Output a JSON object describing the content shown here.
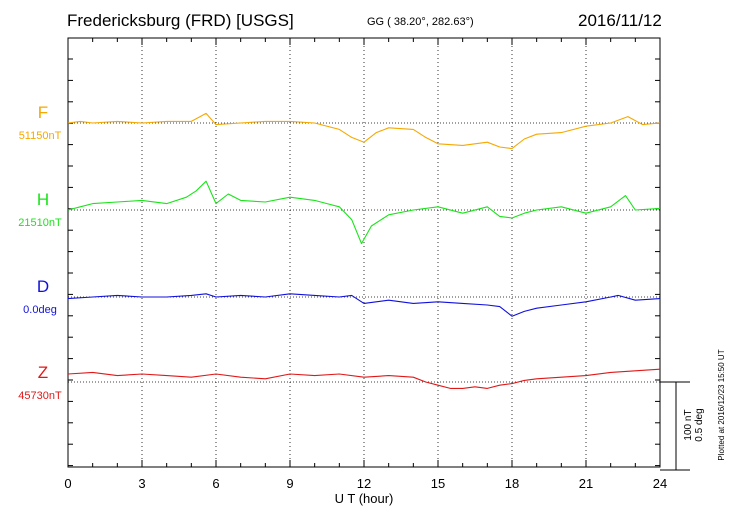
{
  "header": {
    "station": "Fredericksburg (FRD)  [USGS]",
    "coords": "GG ( 38.20°, 282.63°)",
    "date": "2016/11/12"
  },
  "footer": {
    "plotted": "Plotted at 2016/12/23 15:50 UT"
  },
  "colors": {
    "F": "#f5a800",
    "H": "#18e418",
    "D": "#1010dd",
    "Z": "#e01818"
  },
  "chart_data": {
    "type": "line",
    "xlabel": "U T (hour)",
    "xlim": [
      0,
      24
    ],
    "xticks": [
      "0",
      "3",
      "6",
      "9",
      "12",
      "15",
      "18",
      "21",
      "24"
    ],
    "scale_bar": {
      "line1": "100 nT",
      "line2": "0.5 deg"
    },
    "grid": true,
    "series": [
      {
        "name": "F",
        "baseline_label": "51150nT",
        "baseline_value": 51150,
        "unit": "nT",
        "x": [
          0,
          0.5,
          1,
          2,
          3,
          4,
          5,
          5.6,
          6,
          7,
          8,
          9,
          10,
          11,
          11.5,
          12,
          12.5,
          13,
          14,
          14.5,
          15,
          16,
          17,
          17.5,
          18,
          18.5,
          19,
          20,
          21,
          22,
          22.7,
          23.3,
          24
        ],
        "y": [
          51150,
          51151,
          51150,
          51151,
          51150,
          51151,
          51151,
          51156,
          51149,
          51150,
          51151,
          51151,
          51150,
          51146,
          51141,
          51138,
          51144,
          51147,
          51146,
          51141,
          51137,
          51136,
          51138,
          51135,
          51134,
          51140,
          51143,
          51144,
          51148,
          51150,
          51154,
          51149,
          51150
        ]
      },
      {
        "name": "H",
        "baseline_label": "21510nT",
        "baseline_value": 21510,
        "unit": "nT",
        "x": [
          0,
          0.5,
          1,
          2,
          3,
          4,
          4.8,
          5.2,
          5.6,
          6,
          6.5,
          7,
          8,
          9,
          10,
          10.5,
          11,
          11.5,
          11.9,
          12.3,
          13,
          14,
          15,
          16,
          17,
          17.5,
          18,
          18.5,
          19,
          20,
          21,
          22,
          22.6,
          23,
          24
        ],
        "y": [
          21510,
          21512,
          21514,
          21515,
          21516,
          21514,
          21518,
          21522,
          21528,
          21514,
          21520,
          21516,
          21515,
          21518,
          21516,
          21514,
          21512,
          21504,
          21489,
          21500,
          21507,
          21510,
          21512,
          21508,
          21512,
          21506,
          21505,
          21508,
          21510,
          21512,
          21508,
          21512,
          21519,
          21510,
          21511
        ]
      },
      {
        "name": "D",
        "baseline_label": "0.0deg",
        "baseline_value": 0.0,
        "unit": "deg",
        "x": [
          0,
          1,
          2,
          3,
          4,
          5,
          5.6,
          6,
          7,
          8,
          9,
          10,
          11,
          11.5,
          12,
          12.5,
          13,
          14,
          15,
          16,
          17,
          17.5,
          18,
          18.5,
          19,
          20,
          21,
          22,
          22.3,
          23,
          24
        ],
        "y": [
          -0.005,
          0.0,
          0.005,
          0.0,
          0.0,
          0.005,
          0.01,
          0.0,
          0.005,
          0.0,
          0.01,
          0.005,
          0.0,
          0.005,
          -0.02,
          -0.015,
          -0.01,
          -0.02,
          -0.015,
          -0.02,
          -0.025,
          -0.03,
          -0.06,
          -0.045,
          -0.035,
          -0.025,
          -0.015,
          0.0,
          0.005,
          -0.01,
          -0.005
        ]
      },
      {
        "name": "Z",
        "baseline_label": "45730nT",
        "baseline_value": 45730,
        "unit": "nT",
        "x": [
          0,
          1,
          2,
          3,
          4,
          5,
          6,
          7,
          8,
          9,
          10,
          11,
          12,
          13,
          14,
          14.5,
          15,
          15.5,
          16,
          16.5,
          17,
          17.5,
          18,
          18.5,
          19,
          20,
          21,
          22,
          23,
          24
        ],
        "y": [
          45735,
          45736,
          45734,
          45735,
          45734,
          45733,
          45735,
          45733,
          45732,
          45735,
          45734,
          45735,
          45733,
          45734,
          45733,
          45730,
          45728,
          45726,
          45726,
          45727,
          45726,
          45728,
          45729,
          45731,
          45732,
          45733,
          45734,
          45736,
          45737,
          45738
        ]
      }
    ]
  }
}
